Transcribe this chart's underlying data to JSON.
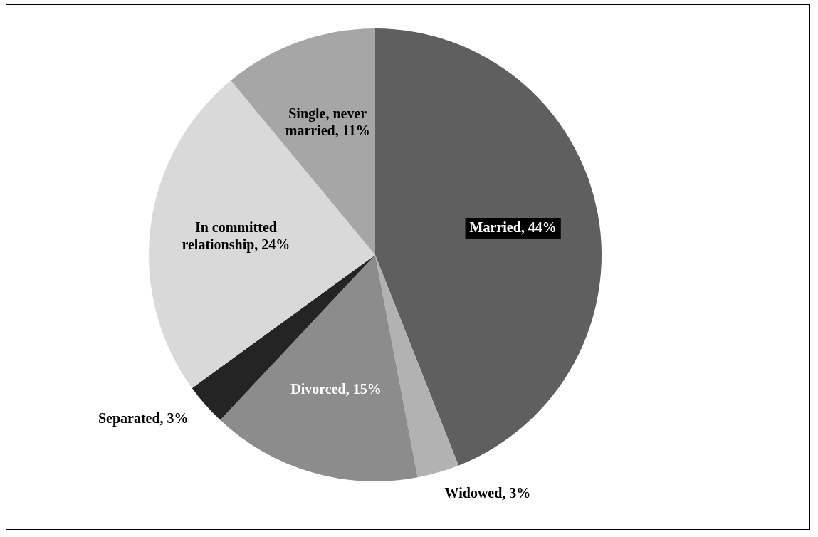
{
  "chart_data": {
    "type": "pie",
    "categories": [
      "Married",
      "Widowed",
      "Divorced",
      "Separated",
      "In committed relationship",
      "Single, never married"
    ],
    "values": [
      44,
      3,
      15,
      3,
      24,
      11
    ],
    "colors": [
      "#5f5f5f",
      "#b2b2b2",
      "#8c8c8c",
      "#242424",
      "#d9d9d9",
      "#a6a6a6"
    ],
    "value_labels": [
      "44%",
      "3%",
      "15%",
      "3%",
      "24%",
      "11%"
    ],
    "legend": false
  }
}
